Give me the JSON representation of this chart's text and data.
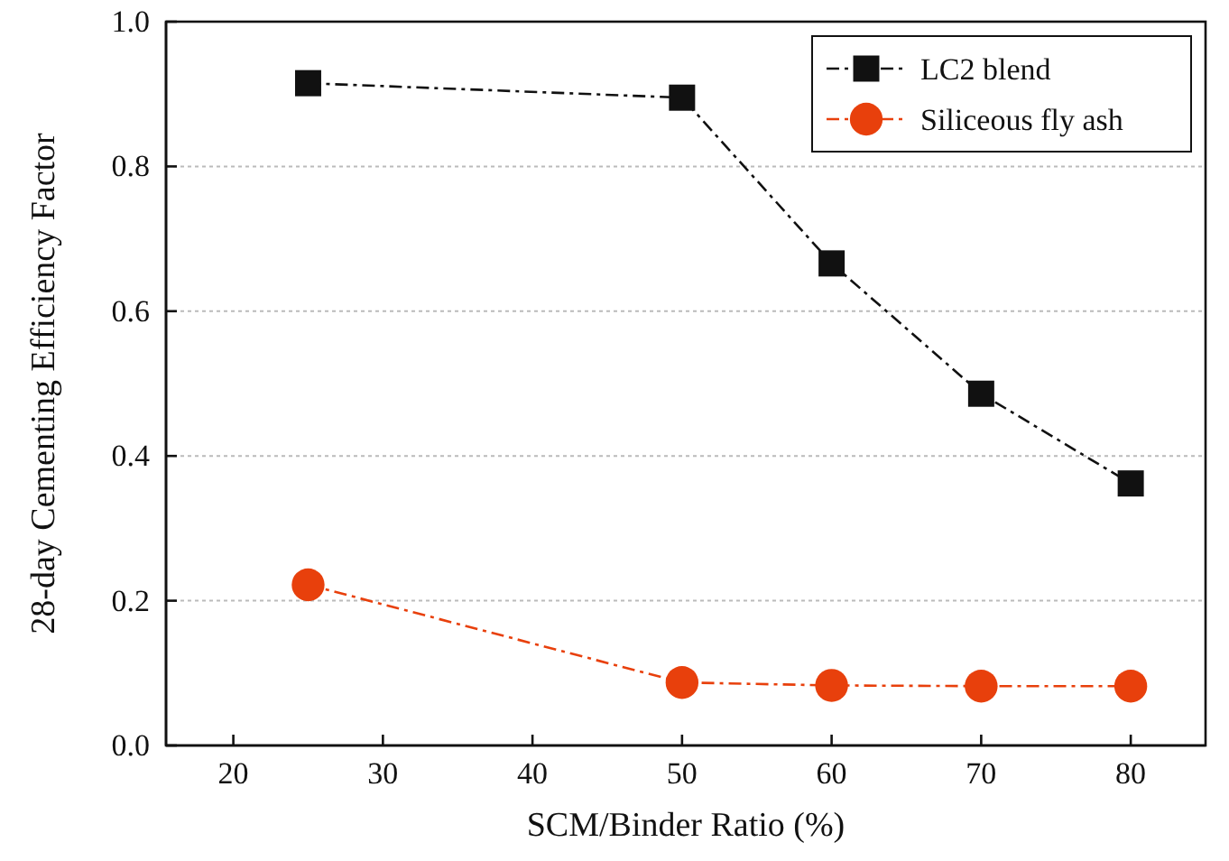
{
  "chart_data": {
    "type": "line",
    "xlabel": "SCM/Binder Ratio (%)",
    "ylabel": "28-day Cementing Efficiency Factor",
    "x": [
      25,
      50,
      60,
      70,
      80
    ],
    "series": [
      {
        "name": "LC2 blend",
        "color": "#111111",
        "marker": "square",
        "line_style": "dashed",
        "values": [
          0.915,
          0.895,
          0.666,
          0.486,
          0.362
        ]
      },
      {
        "name": "Siliceous fly ash",
        "color": "#e8400c",
        "marker": "circle",
        "line_style": "dashed",
        "values": [
          0.222,
          0.087,
          0.083,
          0.082,
          0.082
        ]
      }
    ],
    "xlim": [
      15.5,
      85
    ],
    "xticks": [
      20,
      30,
      40,
      50,
      60,
      70,
      80
    ],
    "ylim": [
      0,
      1
    ],
    "yticks": [
      {
        "value": 0,
        "label": "0.0"
      },
      0.2,
      0.4,
      0.6,
      0.8,
      {
        "value": 1,
        "label": "1.0"
      }
    ],
    "grid": "y",
    "legend": "top right"
  }
}
